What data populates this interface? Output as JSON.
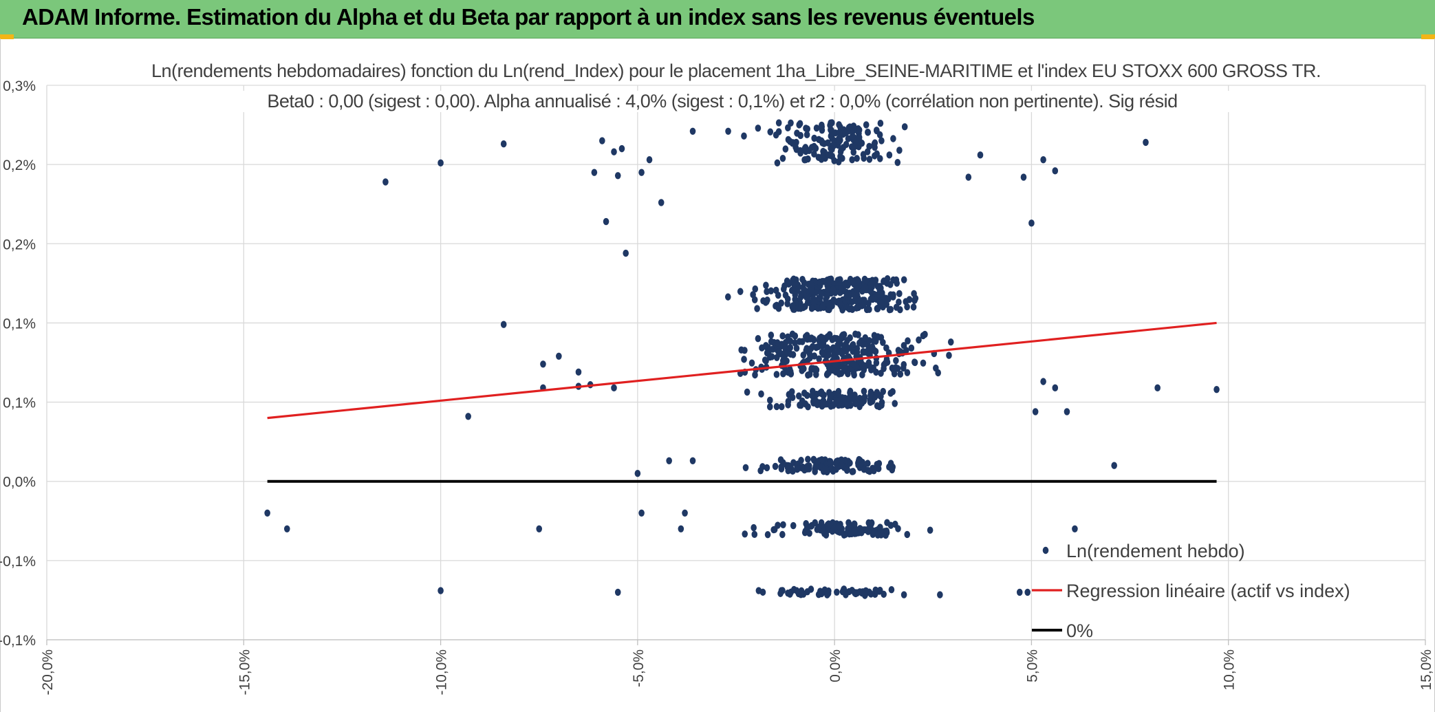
{
  "header": {
    "title": "ADAM Informe. Estimation du Alpha et du Beta par rapport à un index sans les revenus éventuels",
    "background": "#7bc77b"
  },
  "chart_data": {
    "type": "scatter",
    "title_line1": "Ln(rendements hebdomadaires) fonction du Ln(rend_Index) pour le placement 1ha_Libre_SEINE-MARITIME et l'index EU STOXX 600 GROSS TR.",
    "title_line2": "Beta0 : 0,00 (sigest : 0,00). Alpha annualisé : 4,0% (sigest : 0,1%) et r2 : 0,0% (corrélation non pertinente). Sig résid",
    "xlim": [
      -0.2,
      0.15
    ],
    "ylim": [
      -0.001,
      0.0025
    ],
    "x_ticks": [
      -0.2,
      -0.15,
      -0.1,
      -0.05,
      0.0,
      0.05,
      0.1,
      0.15
    ],
    "x_tick_labels": [
      "-20,0%",
      "-15,0%",
      "-10,0%",
      "-5,0%",
      "0,0%",
      "5,0%",
      "10,0%",
      "15,0%"
    ],
    "y_ticks": [
      -0.001,
      -0.0005,
      0.0,
      0.0005,
      0.001,
      0.0015,
      0.002,
      0.0025
    ],
    "y_tick_labels": [
      "-0,1%",
      "-0,1%",
      "0,0%",
      "0,1%",
      "0,1%",
      "0,2%",
      "0,2%",
      "0,3%"
    ],
    "grid": true,
    "series": [
      {
        "name": "Ln(rendement hebdo)",
        "kind": "points",
        "color": "#1f3864",
        "clusters": [
          {
            "y": 0.00214,
            "spread": 0.00013,
            "xmean": 0.0,
            "xsd": 0.018,
            "n": 150
          },
          {
            "y": 0.00118,
            "spread": 0.0001,
            "xmean": 0.0,
            "xsd": 0.022,
            "n": 320
          },
          {
            "y": 0.0008,
            "spread": 0.00013,
            "xmean": 0.0,
            "xsd": 0.025,
            "n": 300
          },
          {
            "y": 0.00052,
            "spread": 5e-05,
            "xmean": 0.0,
            "xsd": 0.018,
            "n": 120
          },
          {
            "y": 0.0001,
            "spread": 4e-05,
            "xmean": 0.0,
            "xsd": 0.018,
            "n": 110
          },
          {
            "y": -0.0003,
            "spread": 4e-05,
            "xmean": 0.0,
            "xsd": 0.02,
            "n": 110
          },
          {
            "y": -0.0007,
            "spread": 2e-05,
            "xmean": 0.0,
            "xsd": 0.02,
            "n": 55
          }
        ],
        "outliers": [
          {
            "x": -0.144,
            "y": -0.0002
          },
          {
            "x": -0.139,
            "y": -0.0003
          },
          {
            "x": -0.114,
            "y": 0.00189
          },
          {
            "x": -0.1,
            "y": 0.00201
          },
          {
            "x": -0.1,
            "y": -0.00069
          },
          {
            "x": -0.093,
            "y": 0.00041
          },
          {
            "x": -0.084,
            "y": 0.00213
          },
          {
            "x": -0.084,
            "y": 0.00099
          },
          {
            "x": -0.075,
            "y": -0.0003
          },
          {
            "x": -0.074,
            "y": 0.00074
          },
          {
            "x": -0.074,
            "y": 0.00059
          },
          {
            "x": -0.07,
            "y": 0.00079
          },
          {
            "x": -0.065,
            "y": 0.00069
          },
          {
            "x": -0.065,
            "y": 0.0006
          },
          {
            "x": -0.061,
            "y": 0.00195
          },
          {
            "x": -0.062,
            "y": 0.00061
          },
          {
            "x": -0.059,
            "y": 0.00215
          },
          {
            "x": -0.058,
            "y": 0.00164
          },
          {
            "x": -0.056,
            "y": 0.00059
          },
          {
            "x": -0.056,
            "y": 0.00208
          },
          {
            "x": -0.055,
            "y": 0.00193
          },
          {
            "x": -0.055,
            "y": -0.0007
          },
          {
            "x": -0.054,
            "y": 0.0021
          },
          {
            "x": -0.053,
            "y": 0.00144
          },
          {
            "x": -0.05,
            "y": 5e-05
          },
          {
            "x": -0.049,
            "y": 0.00195
          },
          {
            "x": -0.049,
            "y": -0.0002
          },
          {
            "x": -0.047,
            "y": 0.00203
          },
          {
            "x": -0.044,
            "y": 0.00176
          },
          {
            "x": -0.042,
            "y": 0.00013
          },
          {
            "x": -0.039,
            "y": -0.0003
          },
          {
            "x": -0.038,
            "y": -0.0002
          },
          {
            "x": -0.036,
            "y": 0.00013
          },
          {
            "x": -0.036,
            "y": 0.00221
          },
          {
            "x": -0.027,
            "y": 0.00221
          },
          {
            "x": -0.023,
            "y": 0.00218
          },
          {
            "x": 0.034,
            "y": 0.00192
          },
          {
            "x": 0.037,
            "y": 0.00206
          },
          {
            "x": 0.048,
            "y": 0.00192
          },
          {
            "x": 0.05,
            "y": 0.00163
          },
          {
            "x": 0.053,
            "y": 0.00203
          },
          {
            "x": 0.056,
            "y": 0.00196
          },
          {
            "x": 0.053,
            "y": 0.00063
          },
          {
            "x": 0.056,
            "y": 0.00059
          },
          {
            "x": 0.051,
            "y": 0.00044
          },
          {
            "x": 0.059,
            "y": 0.00044
          },
          {
            "x": 0.061,
            "y": -0.0003
          },
          {
            "x": 0.071,
            "y": 0.0001
          },
          {
            "x": 0.079,
            "y": 0.00214
          },
          {
            "x": 0.082,
            "y": 0.00059
          },
          {
            "x": 0.097,
            "y": 0.00058
          },
          {
            "x": 0.049,
            "y": -0.0007
          },
          {
            "x": 0.047,
            "y": -0.0007
          }
        ]
      },
      {
        "name": "Regression linéaire (actif vs index)",
        "kind": "line",
        "color": "#e02020",
        "x": [
          -0.144,
          0.097
        ],
        "y": [
          0.0004,
          0.001
        ]
      },
      {
        "name": "0%",
        "kind": "line",
        "color": "#000000",
        "x": [
          -0.144,
          0.097
        ],
        "y": [
          0.0,
          0.0
        ]
      }
    ],
    "legend_position": "bottom-right"
  }
}
